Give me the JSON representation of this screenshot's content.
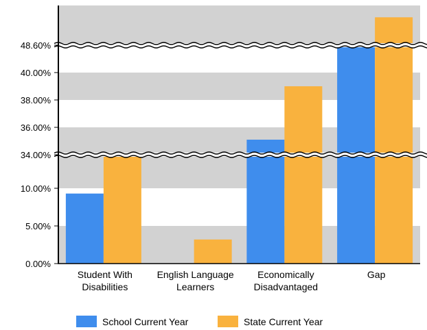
{
  "chart_data": {
    "type": "bar",
    "title": "",
    "xlabel": "",
    "ylabel": "",
    "categories": [
      [
        "Student With",
        "Disabilities"
      ],
      [
        "English Language",
        "Learners"
      ],
      [
        "Economically",
        "Disadvantaged"
      ],
      [
        "Gap"
      ]
    ],
    "y_ticks": [
      "0.00%",
      "5.00%",
      "10.00%",
      "34.00%",
      "36.00%",
      "38.00%",
      "40.00%",
      "48.60%"
    ],
    "axis_breaks": [
      "10.00%-34.00%",
      "40.00%-48.60%"
    ],
    "series": [
      {
        "name": "School Current Year",
        "color": "#3f8ded",
        "values": [
          9.3,
          0,
          35.1,
          47.2
        ]
      },
      {
        "name": "State Current Year",
        "color": "#f9b23e",
        "values": [
          12.6,
          3.2,
          39.0,
          51.4
        ]
      }
    ],
    "grid": "alternating-bands",
    "legend_position": "bottom-center"
  }
}
